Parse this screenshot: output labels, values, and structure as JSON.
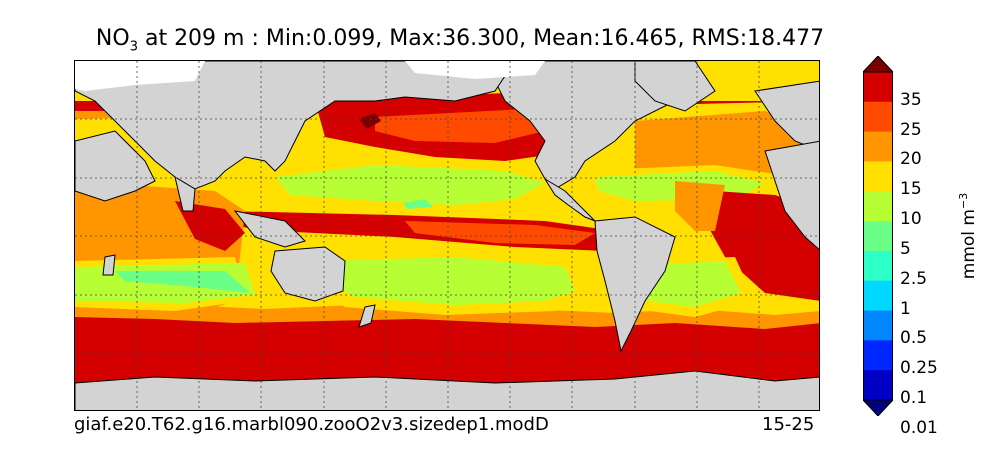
{
  "title": {
    "variable": "NO",
    "variable_sub": "3",
    "rest": " at 209 m : Min:0.099, Max:36.300, Mean:16.465, RMS:18.477"
  },
  "footer": {
    "case_name": "giaf.e20.T62.g16.marbl090.zooO2v3.sizedep1.modD",
    "years": "15-25"
  },
  "colorbar": {
    "unit_base": "mmol m",
    "unit_exp": "−3",
    "labels": [
      "35",
      "25",
      "20",
      "15",
      "10",
      "5",
      "2.5",
      "1",
      "0.5",
      "0.25",
      "0.1",
      "0.01"
    ],
    "colors": [
      "#7a0000",
      "#d40000",
      "#ff4a00",
      "#ff9500",
      "#ffe000",
      "#b7ff34",
      "#6aff86",
      "#2cffc8",
      "#00d8ff",
      "#0086ff",
      "#0026ff",
      "#0000c4",
      "#000080"
    ]
  },
  "map": {
    "land_color": "#d3d3d3",
    "missing_color": "#ffffff",
    "contour_colors": {
      "lvl35": "#7a0000",
      "lvl25": "#d40000",
      "lvl20": "#ff4a00",
      "lvl15": "#ff9500",
      "lvl10": "#ffe000",
      "lvl5": "#b7ff34",
      "lvl2_5": "#6aff86"
    }
  }
}
